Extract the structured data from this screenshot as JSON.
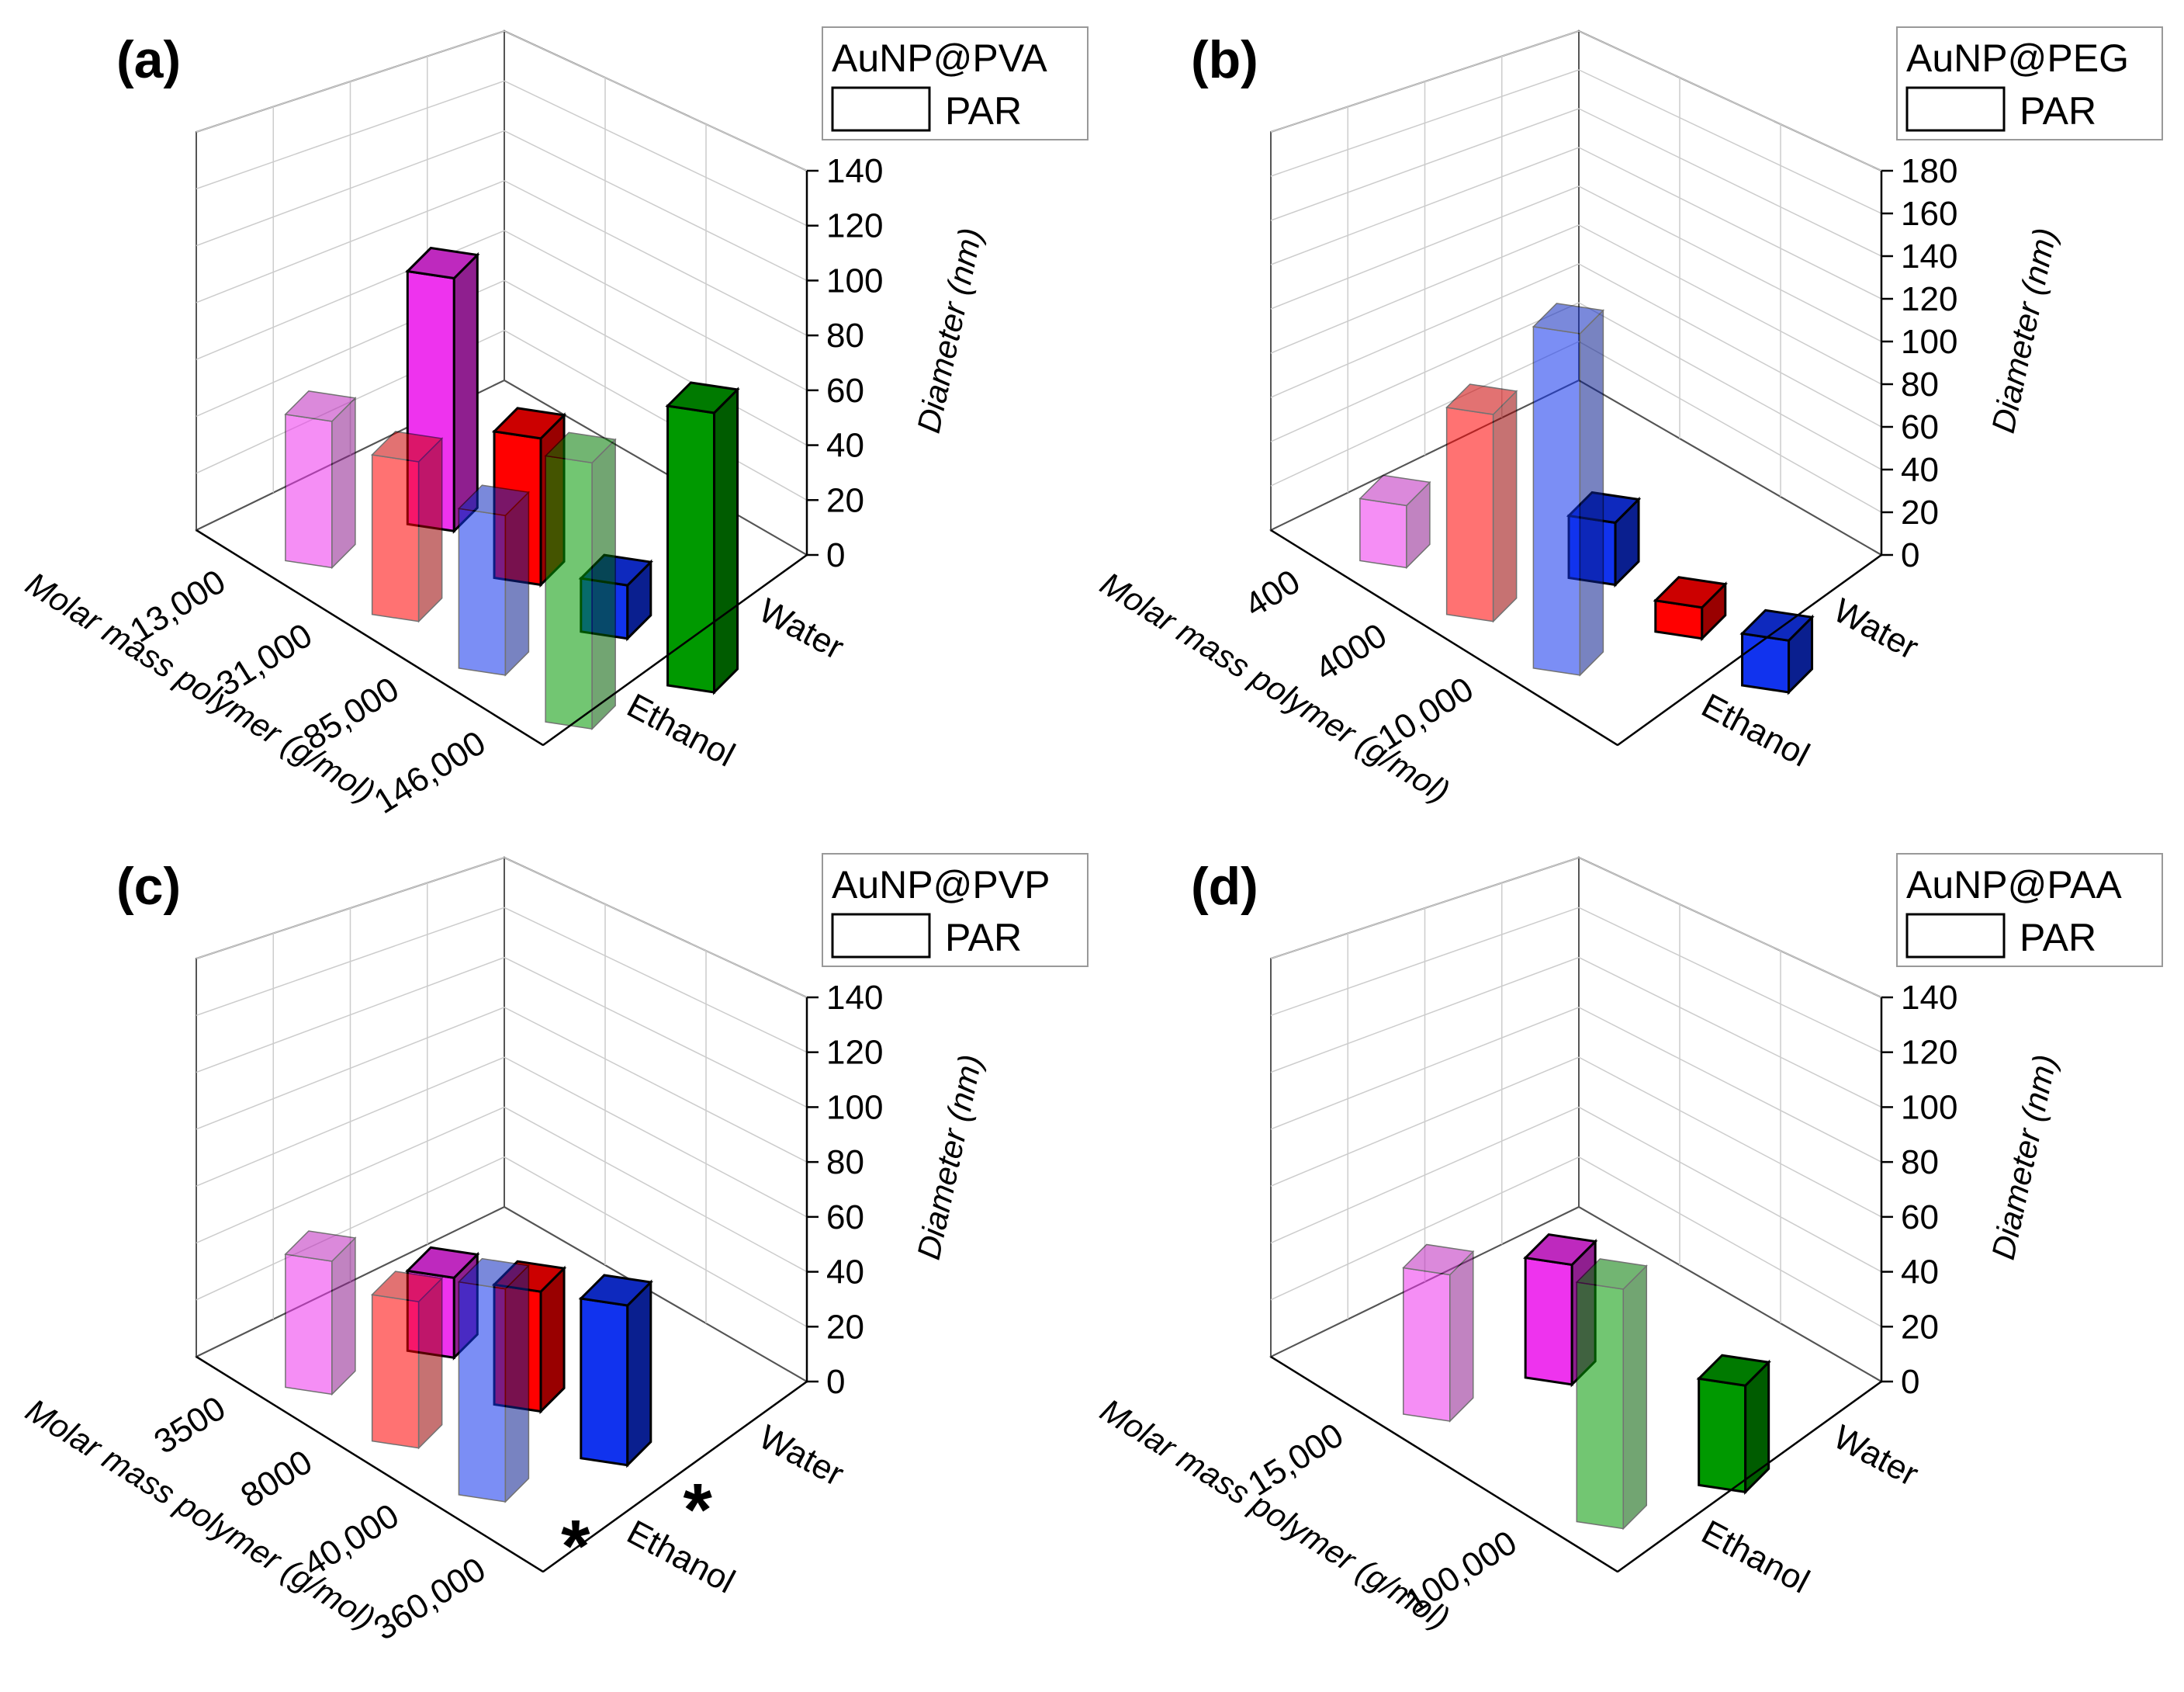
{
  "colors": {
    "red": "#ff0000",
    "blue": "#1133ee",
    "green": "#009900",
    "magenta": "#ee33ee"
  },
  "chart_data": [
    {
      "panel": "(a)",
      "type": "bar3d",
      "legend": {
        "title": "AuNP@PVA",
        "entry": "PAR"
      },
      "x_categories": [
        "13,000",
        "31,000",
        "85,000",
        "146,000"
      ],
      "xlabel": "Molar mass polymer (g/mol)",
      "z_categories": [
        "Water",
        "Ethanol"
      ],
      "ylabel": "Diameter (nm)",
      "ylim": [
        0,
        140
      ],
      "yticks": [
        "0",
        "20",
        "40",
        "60",
        "80",
        "100",
        "120",
        "140"
      ],
      "bars": [
        {
          "x": "13,000",
          "solvent": "Water",
          "value": 95,
          "color": "magenta"
        },
        {
          "x": "31,000",
          "solvent": "Water",
          "value": 55,
          "color": "red"
        },
        {
          "x": "85,000",
          "solvent": "Water",
          "value": 20,
          "color": "blue"
        },
        {
          "x": "146,000",
          "solvent": "Water",
          "value": 105,
          "color": "green"
        },
        {
          "x": "13,000",
          "solvent": "Ethanol",
          "value": 55,
          "color": "magenta"
        },
        {
          "x": "31,000",
          "solvent": "Ethanol",
          "value": 60,
          "color": "red"
        },
        {
          "x": "85,000",
          "solvent": "Ethanol",
          "value": 60,
          "color": "blue"
        },
        {
          "x": "146,000",
          "solvent": "Ethanol",
          "value": 100,
          "color": "green"
        }
      ],
      "annotations": []
    },
    {
      "panel": "(b)",
      "type": "bar3d",
      "legend": {
        "title": "AuNP@PEG",
        "entry": "PAR"
      },
      "x_categories": [
        "400",
        "4000",
        "10,000"
      ],
      "xlabel": "Molar mass polymer (g/mol)",
      "z_categories": [
        "Water",
        "Ethanol"
      ],
      "ylabel": "Diameter (nm)",
      "ylim": [
        0,
        180
      ],
      "yticks": [
        "0",
        "20",
        "40",
        "60",
        "80",
        "100",
        "120",
        "140",
        "160",
        "180"
      ],
      "bars": [
        {
          "x": "4000",
          "solvent": "Water",
          "value": 30,
          "color": "blue"
        },
        {
          "x": "10,000",
          "solvent": "Water",
          "value": 15,
          "color": "red"
        },
        {
          "x": "10,000",
          "solvent": "Water",
          "value": 25,
          "color": "blue",
          "slot": 3
        },
        {
          "x": "400",
          "solvent": "Ethanol",
          "value": 30,
          "color": "magenta"
        },
        {
          "x": "4000",
          "solvent": "Ethanol",
          "value": 100,
          "color": "red"
        },
        {
          "x": "10,000",
          "solvent": "Ethanol",
          "value": 165,
          "color": "blue"
        }
      ],
      "annotations": []
    },
    {
      "panel": "(c)",
      "type": "bar3d",
      "legend": {
        "title": "AuNP@PVP",
        "entry": "PAR"
      },
      "x_categories": [
        "3500",
        "8000",
        "40,000",
        "360,000"
      ],
      "xlabel": "Molar mass polymer (g/mol)",
      "z_categories": [
        "Water",
        "Ethanol"
      ],
      "ylabel": "Diameter (nm)",
      "ylim": [
        0,
        140
      ],
      "yticks": [
        "0",
        "20",
        "40",
        "60",
        "80",
        "100",
        "120",
        "140"
      ],
      "bars": [
        {
          "x": "3500",
          "solvent": "Water",
          "value": 30,
          "color": "magenta"
        },
        {
          "x": "8000",
          "solvent": "Water",
          "value": 45,
          "color": "red"
        },
        {
          "x": "40,000",
          "solvent": "Water",
          "value": 60,
          "color": "blue"
        },
        {
          "x": "3500",
          "solvent": "Ethanol",
          "value": 50,
          "color": "magenta"
        },
        {
          "x": "8000",
          "solvent": "Ethanol",
          "value": 55,
          "color": "red"
        },
        {
          "x": "40,000",
          "solvent": "Ethanol",
          "value": 80,
          "color": "blue"
        }
      ],
      "annotations": [
        {
          "text": "*",
          "x": "360,000",
          "solvent": "Water"
        },
        {
          "text": "*",
          "x": "360,000",
          "solvent": "Ethanol"
        }
      ]
    },
    {
      "panel": "(d)",
      "type": "bar3d",
      "legend": {
        "title": "AuNP@PAA",
        "entry": "PAR"
      },
      "x_categories": [
        "15,000",
        "100,000"
      ],
      "xlabel": "Molar mass polymer (g/mol)",
      "z_categories": [
        "Water",
        "Ethanol"
      ],
      "ylabel": "Diameter (nm)",
      "ylim": [
        0,
        140
      ],
      "yticks": [
        "0",
        "20",
        "40",
        "60",
        "80",
        "100",
        "120",
        "140"
      ],
      "bars": [
        {
          "x": "15,000",
          "solvent": "Water",
          "value": 45,
          "color": "magenta"
        },
        {
          "x": "100,000",
          "solvent": "Water",
          "value": 40,
          "color": "green"
        },
        {
          "x": "15,000",
          "solvent": "Ethanol",
          "value": 55,
          "color": "magenta"
        },
        {
          "x": "100,000",
          "solvent": "Ethanol",
          "value": 90,
          "color": "green"
        }
      ],
      "annotations": []
    }
  ]
}
